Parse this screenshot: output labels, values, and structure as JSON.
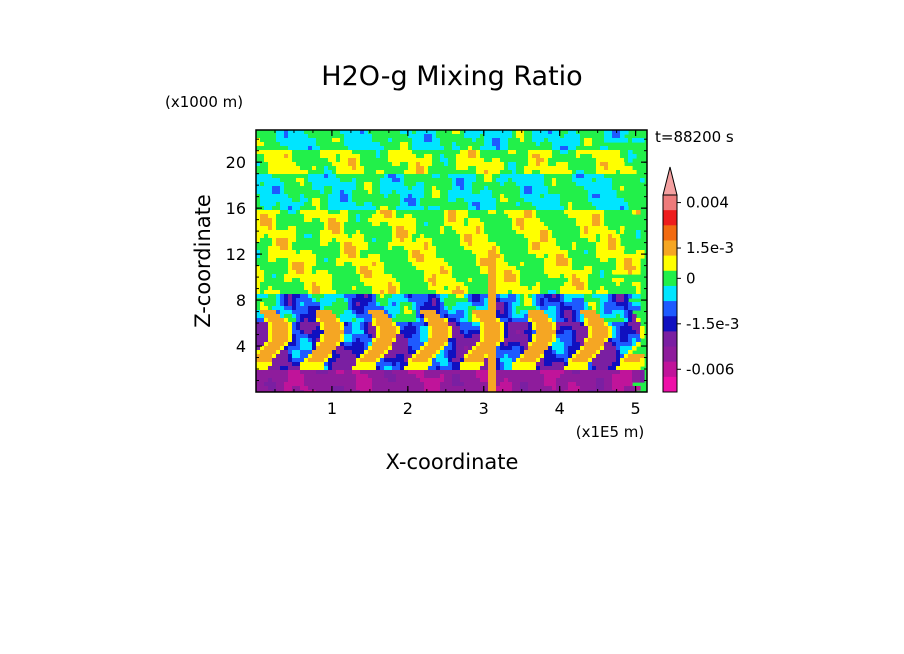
{
  "chart_data": {
    "type": "heatmap",
    "title": "H2O-g Mixing Ratio",
    "xlabel": "X-coordinate",
    "ylabel": "Z-coordinate",
    "x_unit": "(x1E5 m)",
    "y_unit": "(x1000 m)",
    "time_label": "t=88200 s",
    "xlim": [
      0,
      5.15
    ],
    "ylim": [
      0,
      22.8
    ],
    "xticks": [
      "1",
      "2",
      "3",
      "4",
      "5"
    ],
    "yticks": [
      "4",
      "8",
      "12",
      "16",
      "20"
    ],
    "xtick_values": [
      1,
      2,
      3,
      4,
      5
    ],
    "ytick_values": [
      4,
      8,
      12,
      16,
      20
    ],
    "colorbar": {
      "labels": [
        "0.004",
        "1.5e-3",
        "0",
        "-1.5e-3",
        "-0.006"
      ],
      "label_values": [
        0.004,
        0.0015,
        0,
        -0.0015,
        -0.006
      ],
      "levels": [
        {
          "value": 0.0045,
          "color": "#F4A0A0"
        },
        {
          "value": 0.0035,
          "color": "#EE7B7B"
        },
        {
          "value": 0.0025,
          "color": "#EE1C1C"
        },
        {
          "value": 0.0018,
          "color": "#F26A10"
        },
        {
          "value": 0.0012,
          "color": "#F5A623"
        },
        {
          "value": 0.0006,
          "color": "#FFFF00"
        },
        {
          "value": 0.0,
          "color": "#22F04A"
        },
        {
          "value": -0.0006,
          "color": "#00E5FF"
        },
        {
          "value": -0.0012,
          "color": "#1E5AFF"
        },
        {
          "value": -0.0018,
          "color": "#1010C0"
        },
        {
          "value": -0.003,
          "color": "#7A1FA2"
        },
        {
          "value": -0.0045,
          "color": "#8E1C9C"
        },
        {
          "value": -0.006,
          "color": "#C0149A"
        },
        {
          "value": -0.0075,
          "color": "#EE10A8"
        }
      ]
    },
    "field_description": [
      {
        "z_range": [
          0,
          2
        ],
        "dominant_value": -0.004
      },
      {
        "z_range": [
          2,
          6
        ],
        "dominant_value": -0.0015
      },
      {
        "z_range": [
          6,
          8.5
        ],
        "dominant_value": -0.0006
      },
      {
        "z_range": [
          8.5,
          16
        ],
        "dominant_value": 0.0006
      },
      {
        "z_range": [
          16,
          19
        ],
        "dominant_value": 0.0
      },
      {
        "z_range": [
          19,
          21
        ],
        "dominant_value": 0.0006
      },
      {
        "z_range": [
          21,
          22.8
        ],
        "dominant_value": 0.0
      }
    ]
  }
}
